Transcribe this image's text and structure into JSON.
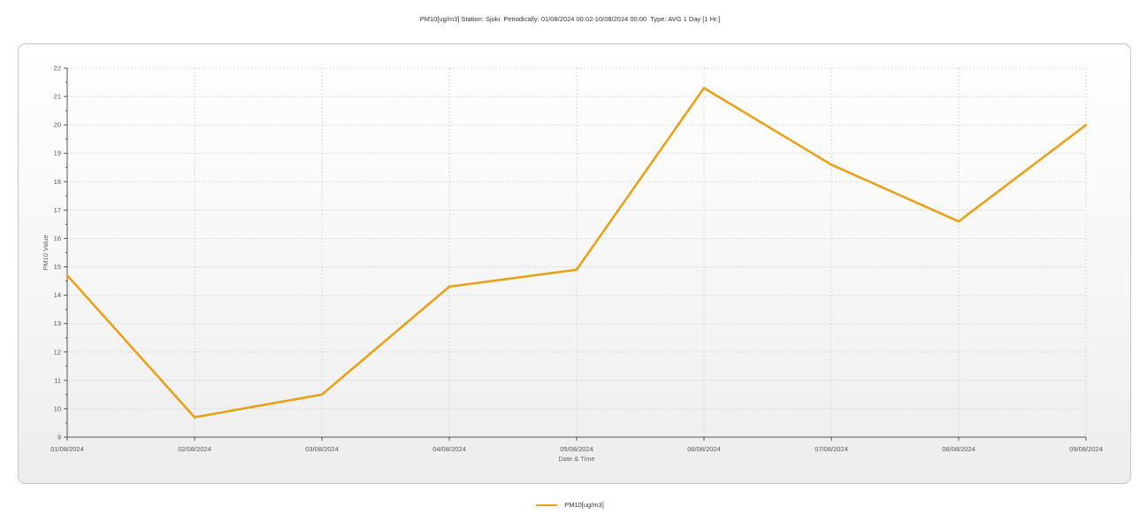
{
  "chart_data": {
    "type": "line",
    "title": "PM10[ug/m3] Station: Sjoki  Periodically: 01/08/2024 00:02-10/08/2024 00:00  Type: AVG 1 Day [1 Hr.]",
    "xlabel": "Date & Time",
    "ylabel": "PM10 Value",
    "categories": [
      "01/08/2024",
      "02/08/2024",
      "03/08/2024",
      "04/08/2024",
      "05/08/2024",
      "06/08/2024",
      "07/08/2024",
      "08/08/2024",
      "09/08/2024"
    ],
    "series": [
      {
        "name": "PM10[ug/m3]",
        "color": "#E6A21B",
        "values": [
          14.7,
          9.7,
          10.5,
          14.3,
          14.9,
          21.3,
          18.6,
          16.6,
          20.0
        ]
      }
    ],
    "ylim": [
      9,
      22
    ],
    "yticks": [
      "9",
      "10",
      "11",
      "12",
      "13",
      "14",
      "15",
      "16",
      "17",
      "18",
      "19",
      "20",
      "21",
      "22"
    ],
    "grid": true,
    "legend_position": "bottom-center"
  },
  "legend": {
    "label": "PM10[ug/m3]",
    "color": "#E6A21B"
  }
}
